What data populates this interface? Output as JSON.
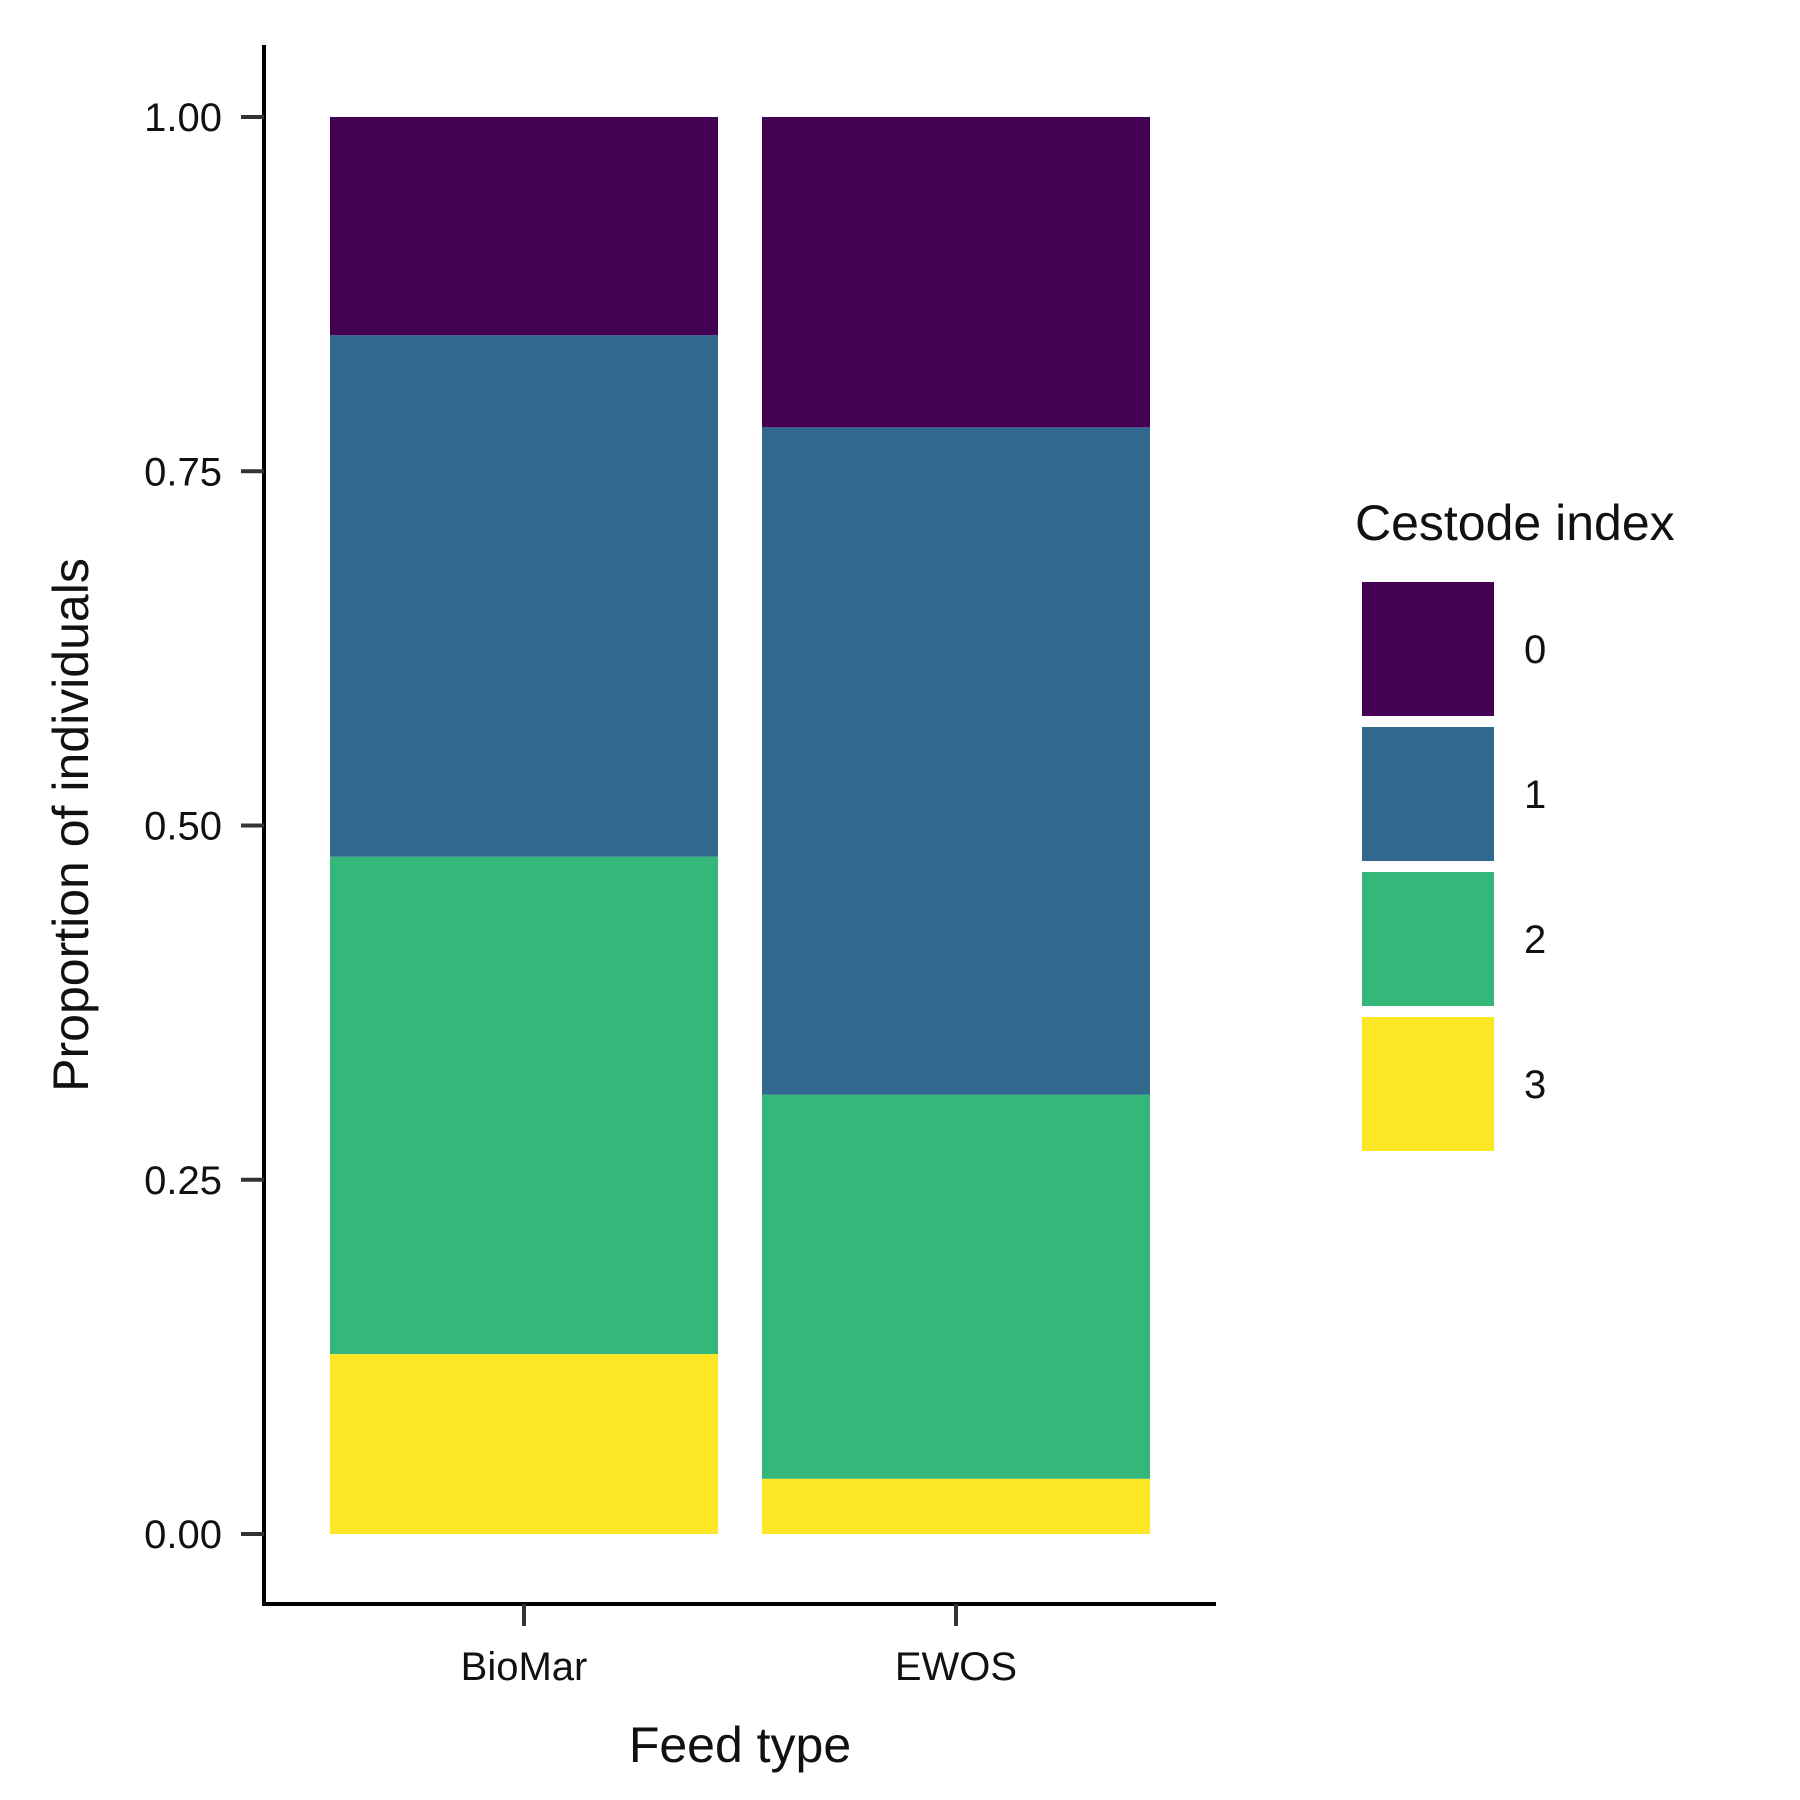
{
  "chart_data": {
    "type": "bar",
    "stacked": true,
    "categories": [
      "BioMar",
      "EWOS"
    ],
    "series": [
      {
        "name": "0",
        "color": "#440154",
        "values": [
          0.154,
          0.219
        ]
      },
      {
        "name": "1",
        "color": "#31688E",
        "values": [
          0.368,
          0.471
        ]
      },
      {
        "name": "2",
        "color": "#35B779",
        "values": [
          0.351,
          0.271
        ]
      },
      {
        "name": "3",
        "color": "#FDE725",
        "values": [
          0.127,
          0.039
        ]
      }
    ],
    "xlabel": "Feed type",
    "ylabel": "Proportion of individuals",
    "ylim": [
      -0.05,
      1.05
    ],
    "yticks": [
      "0.00",
      "0.25",
      "0.50",
      "0.75",
      "1.00"
    ],
    "legend": {
      "title": "Cestode index",
      "placement": "right"
    },
    "grid": false
  }
}
